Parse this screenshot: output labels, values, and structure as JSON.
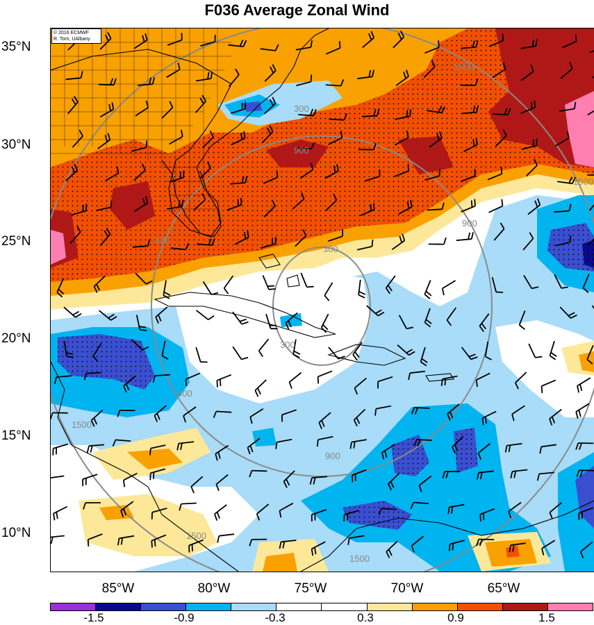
{
  "title": "F036 Average Zonal Wind",
  "credit": {
    "line1": "© 2016 ECMWF",
    "line2": "R. Torn, UAlbany"
  },
  "lat_labels": [
    "35°N",
    "30°N",
    "25°N",
    "20°N",
    "15°N",
    "10°N"
  ],
  "lon_labels": [
    "85°W",
    "80°W",
    "75°W",
    "70°W",
    "65°W"
  ],
  "colorbar": {
    "colors": [
      "#9b30d8",
      "#0a0a8c",
      "#3a4fd0",
      "#00b4f0",
      "#a8dcf8",
      "#ffffff",
      "#ffffff",
      "#fde89a",
      "#f9a100",
      "#f25000",
      "#b01818",
      "#ff7fb0"
    ],
    "labels": [
      "-1.5",
      "-0.9",
      "-0.3",
      "0.3",
      "0.9",
      "1.5"
    ]
  },
  "contour_labels": [
    "300",
    "300",
    "300",
    "900",
    "900",
    "900",
    "900",
    "900",
    "1500",
    "1500",
    "1500",
    "1500",
    "1500"
  ],
  "fill_colors": {
    "deep_red": "#b01818",
    "red_orange": "#f25000",
    "orange": "#f9a100",
    "light_yellow": "#fde89a",
    "light_blue": "#a8dcf8",
    "medium_blue": "#00b4f0",
    "royal_blue": "#3a4fd0",
    "navy": "#0a0a8c",
    "pink": "#ff7fb0"
  },
  "map_legend": {
    "overlay": "wind-barbs",
    "contours": "range-rings"
  }
}
